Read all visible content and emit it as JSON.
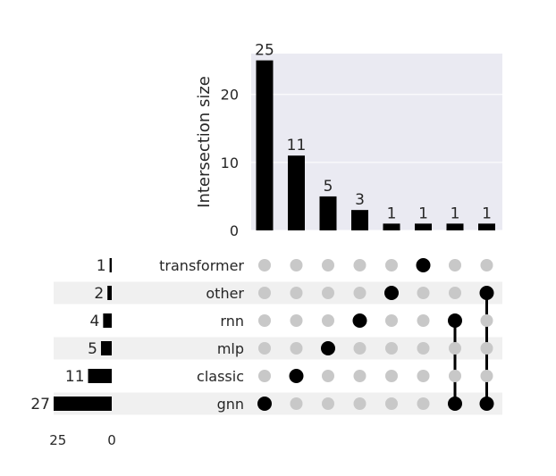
{
  "chart_data": {
    "type": "upset",
    "ylabel": "Intersection size",
    "yticks": [
      0,
      10,
      20
    ],
    "ylim": [
      0,
      26
    ],
    "intersections": [
      {
        "members": [
          "gnn"
        ],
        "size": 25
      },
      {
        "members": [
          "classic"
        ],
        "size": 11
      },
      {
        "members": [
          "mlp"
        ],
        "size": 5
      },
      {
        "members": [
          "rnn"
        ],
        "size": 3
      },
      {
        "members": [
          "other"
        ],
        "size": 1
      },
      {
        "members": [
          "transformer"
        ],
        "size": 1
      },
      {
        "members": [
          "rnn",
          "gnn"
        ],
        "size": 1
      },
      {
        "members": [
          "other",
          "gnn"
        ],
        "size": 1
      }
    ],
    "sets": [
      {
        "name": "transformer",
        "size": 1
      },
      {
        "name": "other",
        "size": 2
      },
      {
        "name": "rnn",
        "size": 4
      },
      {
        "name": "mlp",
        "size": 5
      },
      {
        "name": "classic",
        "size": 11
      },
      {
        "name": "gnn",
        "size": 27
      }
    ],
    "set_size_ticks": [
      25,
      0
    ],
    "set_size_xlim": [
      27,
      0
    ],
    "colors": {
      "bar": "#000000",
      "dot_active": "#000000",
      "dot_inactive": "#c8c8c8",
      "plot_background": "#eaeaf2",
      "stripe": "#f0f0f0",
      "grid": "#ffffff",
      "text": "#262626"
    }
  }
}
